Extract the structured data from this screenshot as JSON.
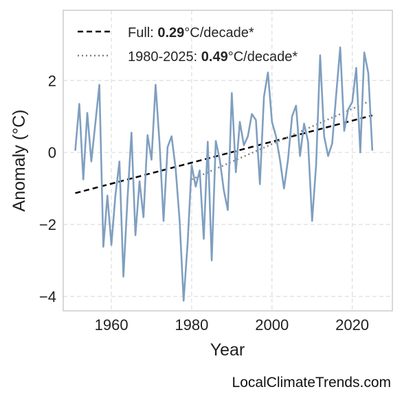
{
  "chart_data": {
    "type": "line",
    "xlabel": "Year",
    "ylabel": "Anomaly (°C)",
    "xlim": [
      1948,
      2030
    ],
    "ylim": [
      -4.4,
      3.95
    ],
    "xticks": [
      1960,
      1980,
      2000,
      2020
    ],
    "yticks": [
      -4,
      -2,
      0,
      2
    ],
    "ytick_labels": [
      "−4",
      "−2",
      "0",
      "2"
    ],
    "grid": true,
    "legend_position": "top-left",
    "series": [
      {
        "color": "#7f9fc0",
        "x": [
          1951,
          1952,
          1953,
          1954,
          1955,
          1956,
          1957,
          1958,
          1959,
          1960,
          1961,
          1962,
          1963,
          1964,
          1965,
          1966,
          1967,
          1968,
          1969,
          1970,
          1971,
          1972,
          1973,
          1974,
          1975,
          1976,
          1977,
          1978,
          1979,
          1980,
          1981,
          1982,
          1983,
          1984,
          1985,
          1986,
          1987,
          1988,
          1989,
          1990,
          1991,
          1992,
          1993,
          1994,
          1995,
          1996,
          1997,
          1998,
          1999,
          2000,
          2001,
          2002,
          2003,
          2004,
          2005,
          2006,
          2007,
          2008,
          2009,
          2010,
          2011,
          2012,
          2013,
          2014,
          2015,
          2016,
          2017,
          2018,
          2019,
          2020,
          2021,
          2022,
          2023,
          2024,
          2025
        ],
        "y": [
          0.05,
          1.35,
          -0.75,
          1.1,
          -0.25,
          0.8,
          1.88,
          -2.62,
          -1.2,
          -2.57,
          -1.2,
          -0.25,
          -3.45,
          -1.3,
          0.55,
          -2.3,
          -0.8,
          -1.8,
          0.48,
          -0.2,
          1.88,
          0.25,
          -1.9,
          0.15,
          0.45,
          -0.45,
          -1.9,
          -4.12,
          -2.5,
          -0.35,
          -0.95,
          -0.5,
          -2.4,
          0.3,
          -3.0,
          0.32,
          -0.2,
          -1.05,
          -1.6,
          1.65,
          -0.55,
          0.85,
          0.2,
          0.45,
          1.07,
          0.9,
          -0.88,
          1.55,
          2.22,
          0.85,
          0.45,
          -0.2,
          -1.0,
          -0.2,
          1.0,
          1.3,
          -0.1,
          0.8,
          0.3,
          -1.9,
          -0.35,
          2.7,
          0.45,
          -0.1,
          0.25,
          1.6,
          2.92,
          0.6,
          1.2,
          1.4,
          2.35,
          0.0,
          2.78,
          2.2,
          0.05
        ]
      }
    ],
    "trends": [
      {
        "color": "#000000",
        "style": "dashed",
        "x": [
          1951,
          2025
        ],
        "y": [
          -1.13,
          1.03
        ]
      },
      {
        "color": "#808080",
        "style": "dotted",
        "x": [
          1980,
          2025
        ],
        "y": [
          -0.75,
          1.46
        ]
      }
    ],
    "legend": [
      {
        "prefix": "Full: ",
        "value": "0.29",
        "suffix": "°C/decade*"
      },
      {
        "prefix": "1980-2025: ",
        "value": "0.49",
        "suffix": "°C/decade*"
      }
    ]
  },
  "footer": {
    "source": "LocalClimateTrends.com"
  },
  "colors": {
    "grid": "#dddddd",
    "frame": "#cccccc",
    "text": "#1f1f1f"
  }
}
